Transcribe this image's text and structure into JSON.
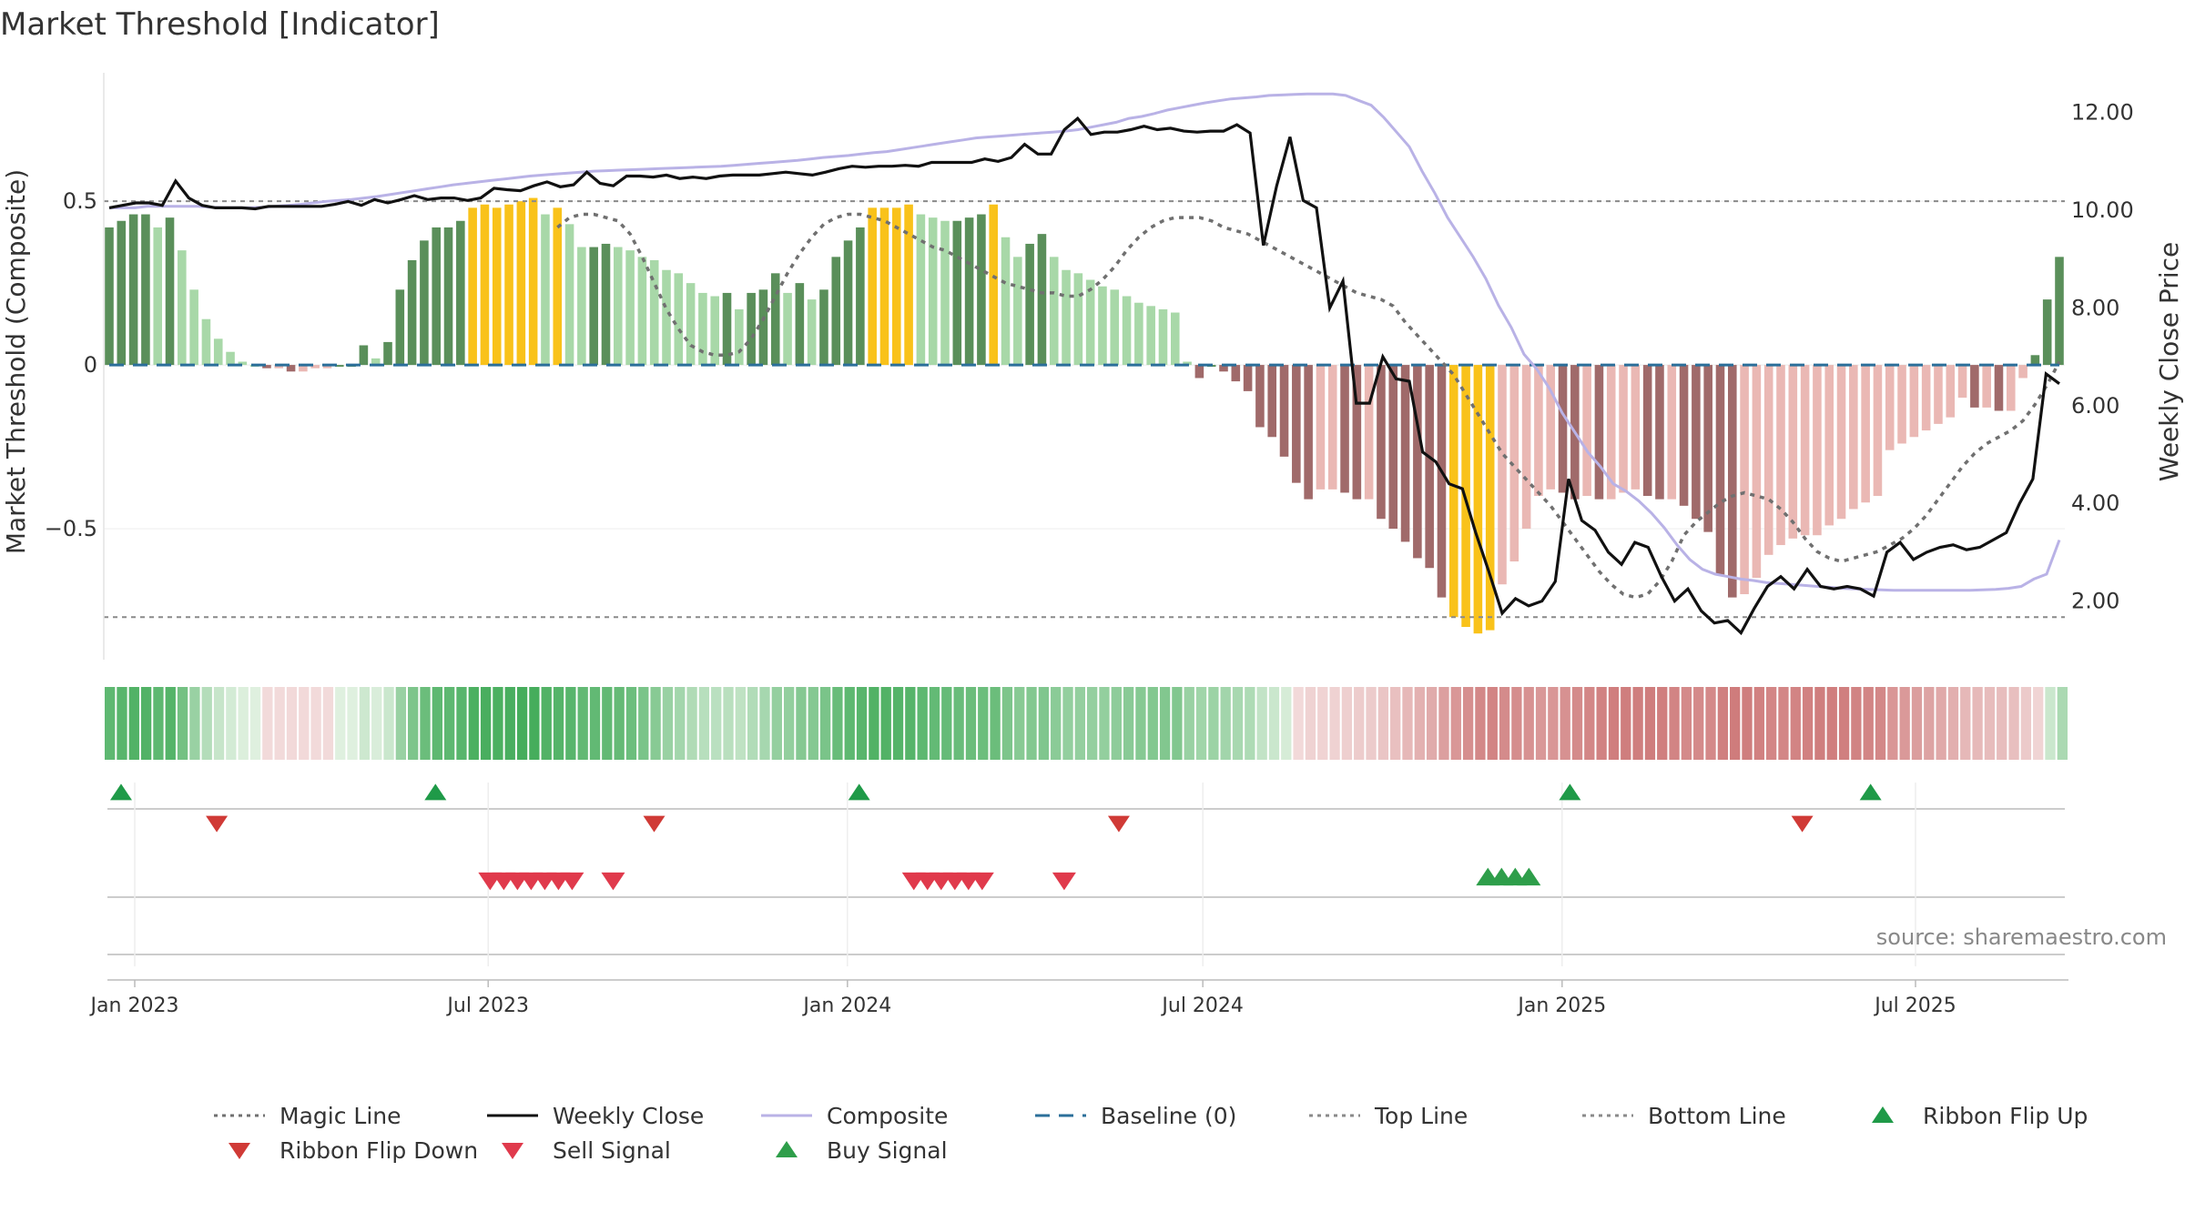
{
  "title": "Market Threshold [Indicator]",
  "source_label": "source: sharemaestro.com",
  "chart_data": {
    "type": "bar",
    "title": "Market Threshold [Indicator]",
    "ylabel": "Market Threshold (Composite)",
    "y2label": "Weekly Close Price",
    "ylim": [
      -0.9,
      0.92
    ],
    "y2lim": [
      0.8,
      13.0
    ],
    "yticks": [
      0.5,
      0,
      -0.5
    ],
    "ytick_labels": [
      "0.5",
      "0",
      "−0.5"
    ],
    "y2ticks": [
      12,
      10,
      8,
      6,
      4,
      2
    ],
    "y2tick_labels": [
      "12.00",
      "10.00",
      "8.00",
      "6.00",
      "4.00",
      "2.00"
    ],
    "xticks": [
      "2023-01-01",
      "2023-07-01",
      "2024-01-01",
      "2024-07-01",
      "2025-01-01",
      "2025-07-01"
    ],
    "xtick_labels": [
      "Jan 2023",
      "Jul 2023",
      "Jan 2024",
      "Jul 2024",
      "Jan 2025",
      "Jul 2025"
    ],
    "top_line": 0.5,
    "bottom_line": -0.77,
    "baseline": 0,
    "composite": [
      0.42,
      0.44,
      0.46,
      0.46,
      0.42,
      0.45,
      0.35,
      0.23,
      0.14,
      0.08,
      0.04,
      0.01,
      0,
      -0.01,
      -0.01,
      -0.02,
      -0.02,
      -0.01,
      -0.01,
      0,
      0,
      0.06,
      0.02,
      0.07,
      0.23,
      0.32,
      0.38,
      0.42,
      0.42,
      0.44,
      0.48,
      0.49,
      0.48,
      0.49,
      0.5,
      0.51,
      0.46,
      0.48,
      0.43,
      0.36,
      0.36,
      0.37,
      0.36,
      0.35,
      0.33,
      0.32,
      0.29,
      0.28,
      0.25,
      0.22,
      0.21,
      0.22,
      0.17,
      0.22,
      0.23,
      0.28,
      0.22,
      0.25,
      0.2,
      0.23,
      0.33,
      0.38,
      0.42,
      0.48,
      0.48,
      0.48,
      0.49,
      0.46,
      0.45,
      0.44,
      0.44,
      0.45,
      0.46,
      0.49,
      0.39,
      0.33,
      0.37,
      0.4,
      0.33,
      0.29,
      0.28,
      0.26,
      0.24,
      0.23,
      0.21,
      0.19,
      0.18,
      0.17,
      0.16,
      0.01,
      -0.04,
      0,
      -0.02,
      -0.05,
      -0.08,
      -0.19,
      -0.22,
      -0.28,
      -0.36,
      -0.41,
      -0.38,
      -0.38,
      -0.39,
      -0.41,
      -0.41,
      -0.47,
      -0.5,
      -0.54,
      -0.59,
      -0.62,
      -0.71,
      -0.77,
      -0.8,
      -0.82,
      -0.81,
      -0.67,
      -0.6,
      -0.5,
      -0.4,
      -0.38,
      -0.39,
      -0.41,
      -0.4,
      -0.41,
      -0.41,
      -0.39,
      -0.38,
      -0.4,
      -0.41,
      -0.41,
      -0.43,
      -0.47,
      -0.51,
      -0.64,
      -0.71,
      -0.7,
      -0.65,
      -0.58,
      -0.55,
      -0.53,
      -0.52,
      -0.52,
      -0.49,
      -0.47,
      -0.44,
      -0.42,
      -0.4,
      -0.26,
      -0.24,
      -0.22,
      -0.2,
      -0.18,
      -0.16,
      -0.1,
      -0.13,
      -0.13,
      -0.14,
      -0.14,
      -0.04,
      0.03,
      0.2,
      0.33
    ],
    "magic_line": [
      0.42,
      0.45,
      0.46,
      0.46,
      0.45,
      0.44,
      0.4,
      0.33,
      0.25,
      0.17,
      0.11,
      0.06,
      0.04,
      0.03,
      0.03,
      0.04,
      0.08,
      0.14,
      0.21,
      0.28,
      0.34,
      0.39,
      0.43,
      0.45,
      0.46,
      0.46,
      0.45,
      0.44,
      0.42,
      0.4,
      0.38,
      0.36,
      0.35,
      0.33,
      0.31,
      0.29,
      0.27,
      0.25,
      0.24,
      0.23,
      0.22,
      0.22,
      0.21,
      0.21,
      0.23,
      0.26,
      0.3,
      0.35,
      0.39,
      0.42,
      0.44,
      0.45,
      0.45,
      0.45,
      0.44,
      0.42,
      0.41,
      0.4,
      0.38,
      0.36,
      0.34,
      0.32,
      0.3,
      0.28,
      0.26,
      0.24,
      0.22,
      0.21,
      0.2,
      0.18,
      0.13,
      0.09,
      0.05,
      0.01,
      -0.03,
      -0.09,
      -0.15,
      -0.21,
      -0.27,
      -0.31,
      -0.35,
      -0.39,
      -0.43,
      -0.48,
      -0.53,
      -0.58,
      -0.63,
      -0.67,
      -0.7,
      -0.71,
      -0.7,
      -0.66,
      -0.6,
      -0.52,
      -0.48,
      -0.45,
      -0.42,
      -0.4,
      -0.39,
      -0.4,
      -0.41,
      -0.44,
      -0.48,
      -0.53,
      -0.57,
      -0.59,
      -0.6,
      -0.59,
      -0.58,
      -0.57,
      -0.55,
      -0.53,
      -0.5,
      -0.46,
      -0.41,
      -0.36,
      -0.31,
      -0.27,
      -0.24,
      -0.22,
      -0.2,
      -0.17,
      -0.12,
      -0.06,
      0.01
    ],
    "weekly_close": [
      10.05,
      10.1,
      10.15,
      10.15,
      10.1,
      10.6,
      10.25,
      10.1,
      10.05,
      10.05,
      10.05,
      10.03,
      10.08,
      10.08,
      10.08,
      10.08,
      10.08,
      10.12,
      10.18,
      10.1,
      10.22,
      10.15,
      10.22,
      10.3,
      10.22,
      10.25,
      10.25,
      10.2,
      10.25,
      10.45,
      10.42,
      10.4,
      10.5,
      10.58,
      10.48,
      10.52,
      10.78,
      10.55,
      10.5,
      10.7,
      10.7,
      10.68,
      10.72,
      10.65,
      10.68,
      10.65,
      10.7,
      10.72,
      10.72,
      10.72,
      10.75,
      10.78,
      10.75,
      10.72,
      10.78,
      10.85,
      10.9,
      10.88,
      10.9,
      10.9,
      10.92,
      10.9,
      10.98,
      10.98,
      10.98,
      10.98,
      11.05,
      11.0,
      11.08,
      11.35,
      11.15,
      11.15,
      11.65,
      11.88,
      11.55,
      11.6,
      11.6,
      11.65,
      11.72,
      11.65,
      11.68,
      11.62,
      11.6,
      11.62,
      11.62,
      11.75,
      11.58,
      9.28,
      10.5,
      11.5,
      10.2,
      10.05,
      8.0,
      8.55,
      6.05,
      6.05,
      7.0,
      6.55,
      6.5,
      5.05,
      4.85,
      4.4,
      4.3,
      3.4,
      2.6,
      1.75,
      2.05,
      1.9,
      2.0,
      2.4,
      4.5,
      3.65,
      3.45,
      3.0,
      2.75,
      3.2,
      3.1,
      2.5,
      2.0,
      2.25,
      1.8,
      1.55,
      1.6,
      1.35,
      1.85,
      2.3,
      2.5,
      2.25,
      2.65,
      2.3,
      2.25,
      2.3,
      2.25,
      2.1,
      3.0,
      3.2,
      2.85,
      3.0,
      3.1,
      3.15,
      3.05,
      3.1,
      3.25,
      3.4,
      4.0,
      4.5,
      6.65,
      6.45
    ],
    "composite_line": [
      10.05,
      10.05,
      10.05,
      10.08,
      10.08,
      10.08,
      10.08,
      10.08,
      10.06,
      10.05,
      10.05,
      10.05,
      10.06,
      10.08,
      10.1,
      10.12,
      10.15,
      10.18,
      10.2,
      10.22,
      10.25,
      10.28,
      10.32,
      10.36,
      10.4,
      10.44,
      10.48,
      10.52,
      10.55,
      10.58,
      10.61,
      10.64,
      10.67,
      10.7,
      10.72,
      10.74,
      10.76,
      10.78,
      10.8,
      10.81,
      10.82,
      10.83,
      10.84,
      10.85,
      10.86,
      10.87,
      10.88,
      10.89,
      10.9,
      10.92,
      10.94,
      10.96,
      10.98,
      11.0,
      11.02,
      11.05,
      11.08,
      11.1,
      11.12,
      11.15,
      11.18,
      11.2,
      11.24,
      11.28,
      11.32,
      11.36,
      11.4,
      11.44,
      11.48,
      11.5,
      11.52,
      11.54,
      11.56,
      11.58,
      11.6,
      11.62,
      11.65,
      11.7,
      11.75,
      11.8,
      11.88,
      11.92,
      11.98,
      12.05,
      12.1,
      12.15,
      12.2,
      12.24,
      12.28,
      12.3,
      12.32,
      12.35,
      12.36,
      12.37,
      12.38,
      12.38,
      12.38,
      12.35,
      12.25,
      12.15,
      11.9,
      11.6,
      11.3,
      10.8,
      10.35,
      9.85,
      9.45,
      9.05,
      8.6,
      8.05,
      7.6,
      7.05,
      6.75,
      6.35,
      5.85,
      5.45,
      5.05,
      4.75,
      4.4,
      4.25,
      4.05,
      3.8,
      3.5,
      3.15,
      2.85,
      2.65,
      2.55,
      2.5,
      2.45,
      2.42,
      2.38,
      2.36,
      2.34,
      2.32,
      2.3,
      2.28,
      2.26,
      2.25,
      2.24,
      2.23,
      2.22,
      2.22,
      2.22,
      2.22,
      2.22,
      2.22,
      2.22,
      2.23,
      2.24,
      2.26,
      2.3,
      2.45,
      2.55,
      3.25
    ],
    "ribbon_flip_up": [
      "2022-12-25",
      "2023-06-04",
      "2024-01-07",
      "2025-01-05",
      "2025-06-08"
    ],
    "ribbon_flip_down": [
      "2023-02-12",
      "2023-09-24",
      "2024-05-19",
      "2025-05-04"
    ],
    "sell_signals": [
      "2023-07-02",
      "2023-07-09",
      "2023-07-16",
      "2023-07-23",
      "2023-07-30",
      "2023-08-06",
      "2023-08-13",
      "2023-09-03",
      "2024-02-04",
      "2024-02-11",
      "2024-02-18",
      "2024-02-25",
      "2024-03-03",
      "2024-03-10",
      "2024-04-21"
    ],
    "buy_signals": [
      "2024-11-24",
      "2024-12-01",
      "2024-12-08",
      "2024-12-15"
    ],
    "legend": [
      {
        "label": "Magic Line",
        "kind": "dotted",
        "color": "#707070"
      },
      {
        "label": "Weekly Close",
        "kind": "solid",
        "color": "#111111"
      },
      {
        "label": "Composite",
        "kind": "solid",
        "color": "#b9b2e6"
      },
      {
        "label": "Baseline (0)",
        "kind": "dashed",
        "color": "#2b6f9a"
      },
      {
        "label": "Top Line",
        "kind": "dotted",
        "color": "#8a8a8a"
      },
      {
        "label": "Bottom Line",
        "kind": "dotted",
        "color": "#8a8a8a"
      },
      {
        "label": "Ribbon Flip Up",
        "kind": "triangle-up",
        "color": "#1f9a48"
      },
      {
        "label": "Ribbon Flip Down",
        "kind": "triangle-down",
        "color": "#d03a36"
      },
      {
        "label": "Sell Signal",
        "kind": "triangle-down",
        "color": "#e03a4c"
      },
      {
        "label": "Buy Signal",
        "kind": "triangle-up",
        "color": "#2e9e4a"
      }
    ],
    "colors": {
      "strong_positive": "#5a8f5a",
      "light_positive": "#a8d8a8",
      "extreme_positive": "#f9c21a",
      "strong_negative": "#a06a6a",
      "light_negative": "#eab8b4",
      "extreme_negative": "#f9c21a"
    }
  }
}
